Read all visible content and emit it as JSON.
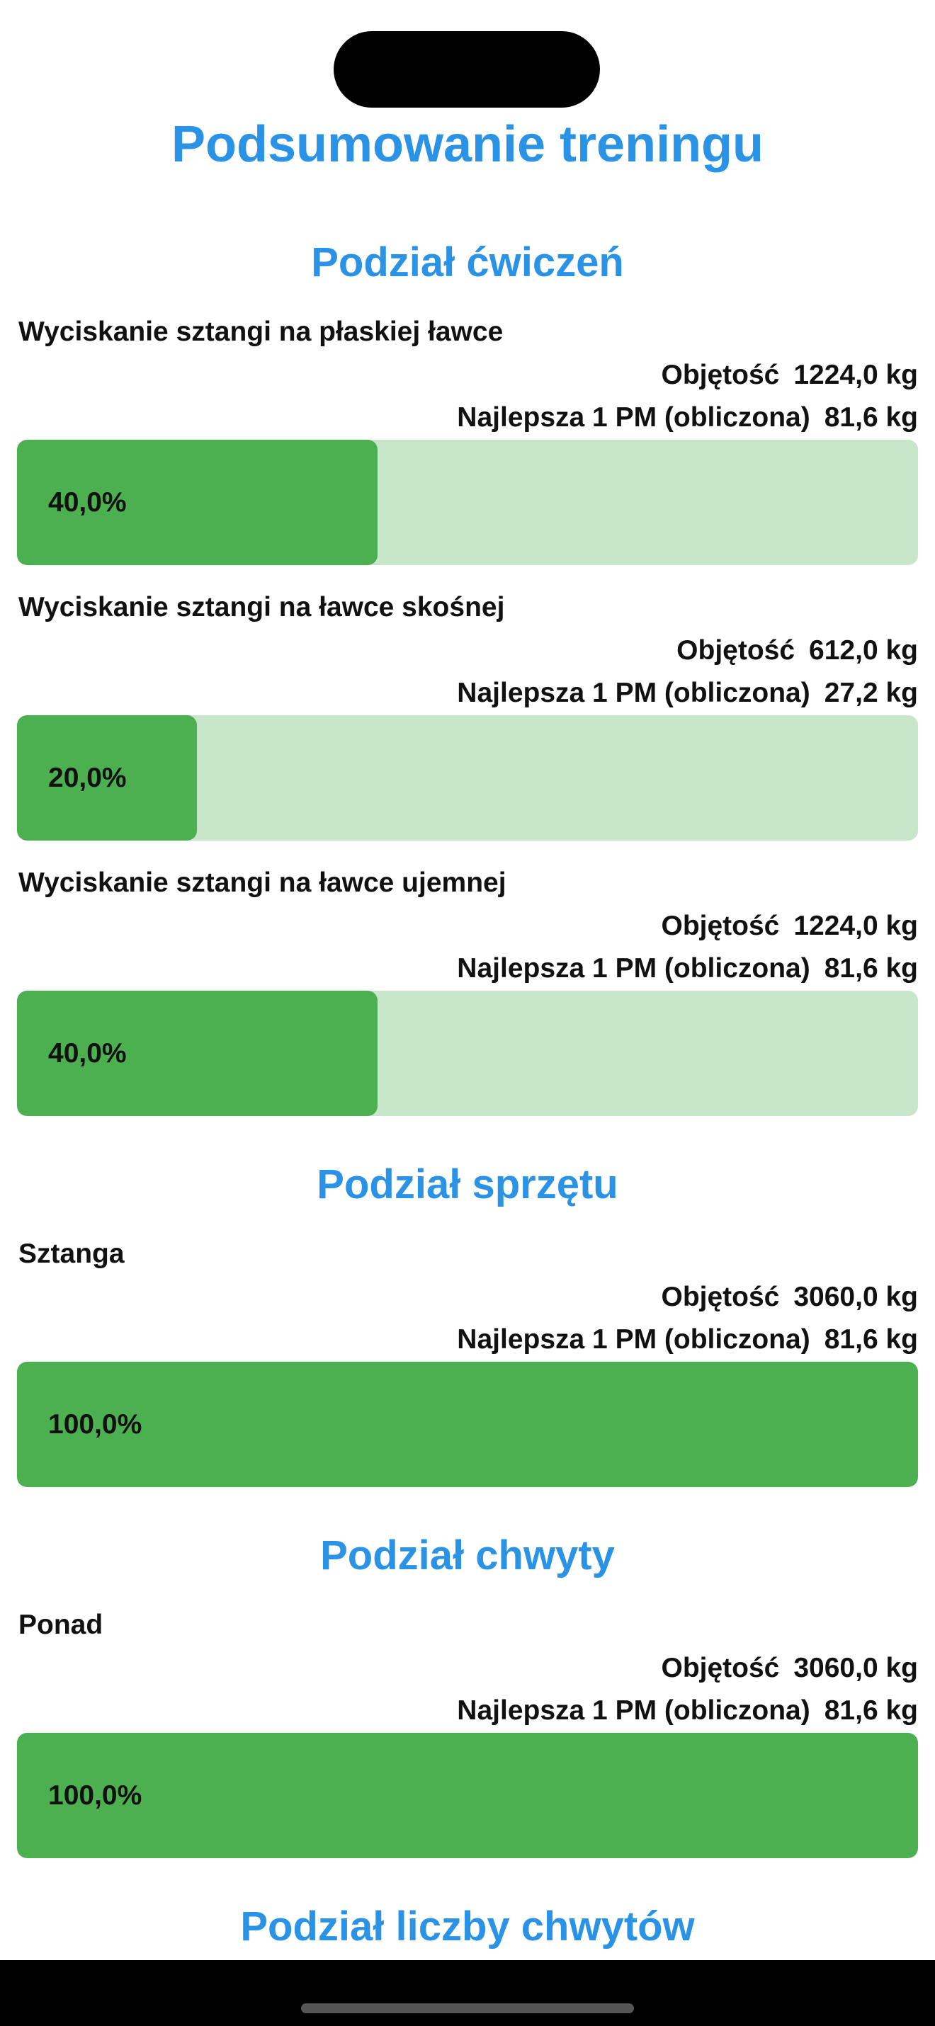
{
  "title": "Podsumowanie treningu",
  "sections": [
    {
      "heading": "Podział ćwiczeń",
      "items": [
        {
          "name": "Wyciskanie sztangi na płaskiej ławce",
          "volume_label": "Objętość",
          "volume": "1224,0 kg",
          "one_rm_label": "Najlepsza 1 PM (obliczona)",
          "one_rm": "81,6 kg",
          "percent": {
            "value": 40,
            "label": "40,0%"
          }
        },
        {
          "name": "Wyciskanie sztangi na ławce skośnej",
          "volume_label": "Objętość",
          "volume": "612,0 kg",
          "one_rm_label": "Najlepsza 1 PM (obliczona)",
          "one_rm": "27,2 kg",
          "percent": {
            "value": 20,
            "label": "20,0%"
          }
        },
        {
          "name": "Wyciskanie sztangi na ławce ujemnej",
          "volume_label": "Objętość",
          "volume": "1224,0 kg",
          "one_rm_label": "Najlepsza 1 PM (obliczona)",
          "one_rm": "81,6 kg",
          "percent": {
            "value": 40,
            "label": "40,0%"
          }
        }
      ]
    },
    {
      "heading": "Podział sprzętu",
      "items": [
        {
          "name": "Sztanga",
          "volume_label": "Objętość",
          "volume": "3060,0 kg",
          "one_rm_label": "Najlepsza 1 PM (obliczona)",
          "one_rm": "81,6 kg",
          "percent": {
            "value": 100,
            "label": "100,0%"
          }
        }
      ]
    },
    {
      "heading": "Podział chwyty",
      "items": [
        {
          "name": "Ponad",
          "volume_label": "Objętość",
          "volume": "3060,0 kg",
          "one_rm_label": "Najlepsza 1 PM (obliczona)",
          "one_rm": "81,6 kg",
          "percent": {
            "value": 100,
            "label": "100,0%"
          }
        }
      ]
    },
    {
      "heading": "Podział liczby chwytów"
    }
  ]
}
